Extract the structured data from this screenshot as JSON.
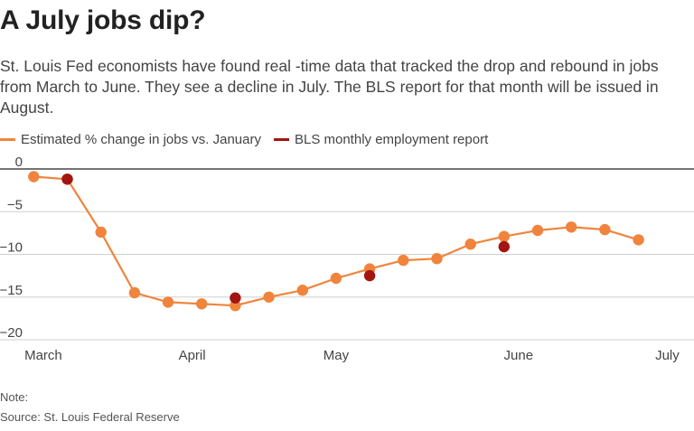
{
  "header": {
    "title": "A July jobs dip?",
    "subtitle": "St. Louis Fed economists have found real -time data that tracked the drop and rebound in jobs from March to June. They see a decline in July. The BLS report for that month will be issued in August."
  },
  "legend": {
    "items": [
      {
        "label": "Estimated % change in jobs vs. January",
        "color": "#f0843c"
      },
      {
        "label": "BLS monthly employment report",
        "color": "#a3150f"
      }
    ]
  },
  "footer": {
    "note": "Note:",
    "source": "Source: St. Louis Federal Reserve"
  },
  "chart_data": {
    "type": "line",
    "title": "A July jobs dip?",
    "xlabel": "",
    "ylabel": "",
    "ylim": [
      -20,
      0
    ],
    "yticks": [
      0,
      -5,
      -10,
      -15,
      -20
    ],
    "ytick_labels": [
      "0",
      "−5",
      "−10",
      "−15",
      "−20"
    ],
    "xlim": [
      "2020-03-01",
      "2020-07-17"
    ],
    "xticks": [
      {
        "date": "2020-03-04",
        "label": "March"
      },
      {
        "date": "2020-04-04",
        "label": "April"
      },
      {
        "date": "2020-05-04",
        "label": "May"
      },
      {
        "date": "2020-06-11",
        "label": "June"
      },
      {
        "date": "2020-07-12",
        "label": "July"
      }
    ],
    "grid": true,
    "legend_position": "top-left",
    "series": [
      {
        "name": "Estimated % change in jobs vs. January",
        "color": "#f0843c",
        "style": "line-with-markers",
        "points": [
          {
            "x": "2020-03-02",
            "y": -0.9
          },
          {
            "x": "2020-03-09",
            "y": -1.2
          },
          {
            "x": "2020-03-16",
            "y": -7.4
          },
          {
            "x": "2020-03-23",
            "y": -14.5
          },
          {
            "x": "2020-03-30",
            "y": -15.6
          },
          {
            "x": "2020-04-06",
            "y": -15.8
          },
          {
            "x": "2020-04-13",
            "y": -16.0
          },
          {
            "x": "2020-04-20",
            "y": -15.0
          },
          {
            "x": "2020-04-27",
            "y": -14.2
          },
          {
            "x": "2020-05-04",
            "y": -12.8
          },
          {
            "x": "2020-05-11",
            "y": -11.7
          },
          {
            "x": "2020-05-18",
            "y": -10.7
          },
          {
            "x": "2020-05-25",
            "y": -10.5
          },
          {
            "x": "2020-06-01",
            "y": -8.8
          },
          {
            "x": "2020-06-08",
            "y": -7.9
          },
          {
            "x": "2020-06-15",
            "y": -7.2
          },
          {
            "x": "2020-06-22",
            "y": -6.8
          },
          {
            "x": "2020-06-29",
            "y": -7.1
          },
          {
            "x": "2020-07-06",
            "y": -8.3
          }
        ]
      },
      {
        "name": "BLS monthly employment report",
        "color": "#a3150f",
        "style": "markers",
        "points": [
          {
            "x": "2020-03-09",
            "y": -1.2
          },
          {
            "x": "2020-04-13",
            "y": -15.1
          },
          {
            "x": "2020-05-11",
            "y": -12.5
          },
          {
            "x": "2020-06-08",
            "y": -9.1
          }
        ]
      }
    ]
  }
}
